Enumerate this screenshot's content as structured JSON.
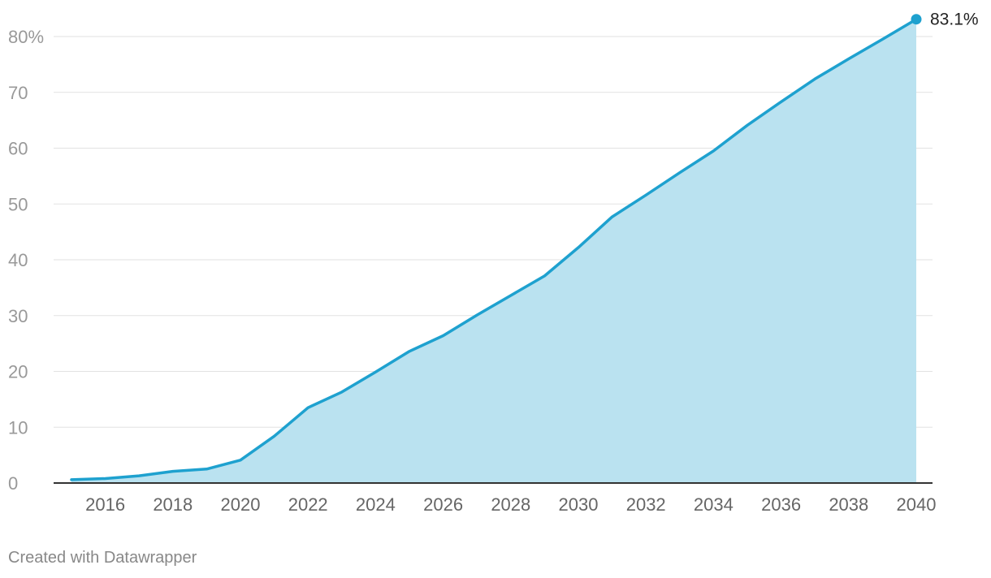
{
  "chart_data": {
    "type": "area",
    "title": "",
    "xlabel": "",
    "ylabel": "",
    "y_unit_suffix": "%",
    "xlim": [
      2015,
      2040
    ],
    "ylim": [
      0,
      80
    ],
    "y_ticks": [
      0,
      10,
      20,
      30,
      40,
      50,
      60,
      70,
      80
    ],
    "y_tick_labels": [
      "0",
      "10",
      "20",
      "30",
      "40",
      "50",
      "60",
      "70",
      "80%"
    ],
    "x_ticks": [
      2016,
      2018,
      2020,
      2022,
      2024,
      2026,
      2028,
      2030,
      2032,
      2034,
      2036,
      2038,
      2040
    ],
    "x_tick_labels": [
      "2016",
      "2018",
      "2020",
      "2022",
      "2024",
      "2026",
      "2028",
      "2030",
      "2032",
      "2034",
      "2036",
      "2038",
      "2040"
    ],
    "grid": true,
    "legend": "none",
    "end_label": "83.1%",
    "colors": {
      "line": "#1ea1cf",
      "fill": "#bae2f0",
      "grid": "#e2e2e2",
      "baseline": "#333333"
    },
    "series": [
      {
        "x": [
          2015,
          2016,
          2017,
          2018,
          2019,
          2020,
          2021,
          2022,
          2023,
          2024,
          2025,
          2026,
          2027,
          2028,
          2029,
          2030,
          2031,
          2032,
          2033,
          2034,
          2035,
          2036,
          2037,
          2038,
          2039,
          2040
        ],
        "values": [
          0.6,
          0.8,
          1.3,
          2.1,
          2.5,
          4.1,
          8.4,
          13.5,
          16.3,
          19.9,
          23.6,
          26.4,
          30.1,
          33.6,
          37.1,
          42.2,
          47.7,
          51.6,
          55.6,
          59.5,
          64.1,
          68.3,
          72.4,
          76.0,
          79.5,
          83.1
        ]
      }
    ]
  },
  "footer": {
    "credit": "Created with Datawrapper"
  }
}
